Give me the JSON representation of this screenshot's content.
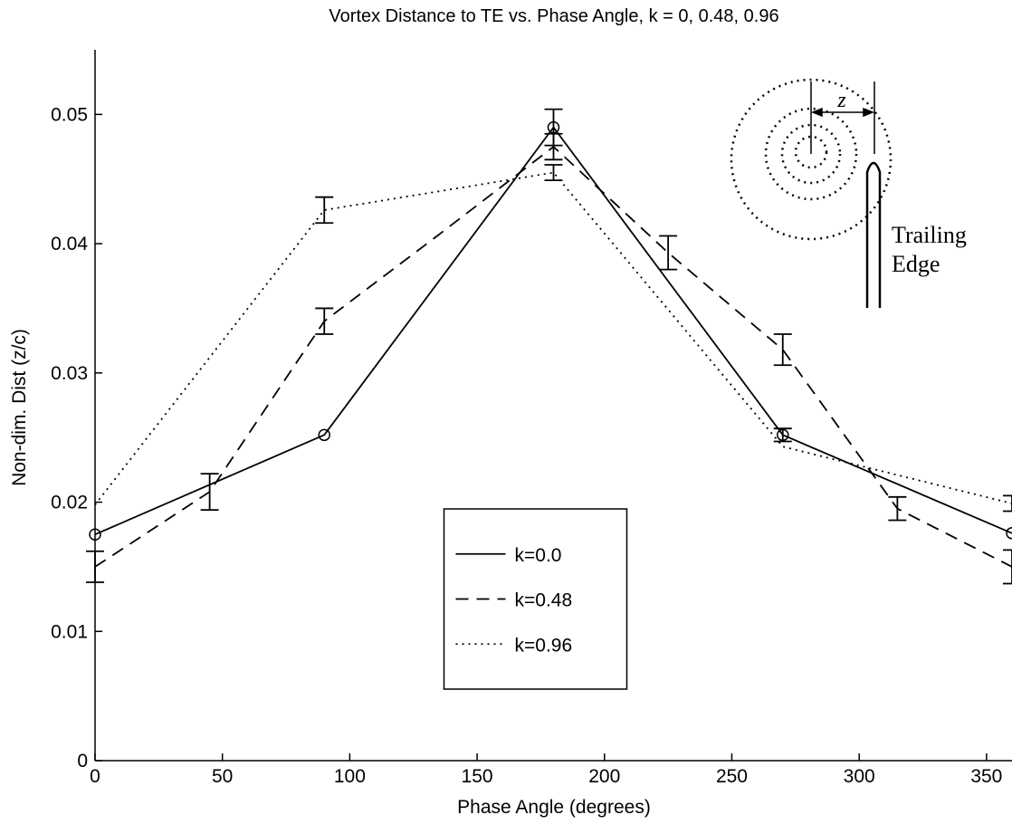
{
  "chart_data": {
    "type": "line",
    "title": "Vortex Distance to TE vs. Phase Angle, k = 0, 0.48, 0.96",
    "x_label": "Phase Angle (degrees)",
    "y_label": "Non-dim. Dist (z/c)",
    "xlim": [
      0,
      360
    ],
    "xticks": [
      0,
      50,
      100,
      150,
      200,
      250,
      300,
      350
    ],
    "ylim": [
      0,
      0.055
    ],
    "yticks": [
      0,
      0.01,
      0.02,
      0.03,
      0.04,
      0.05
    ],
    "legend": "lower center",
    "series": [
      {
        "name": "k=0.0",
        "color": "#000000",
        "style": "solid",
        "marker": "circle",
        "x": [
          0,
          90,
          180,
          270,
          360
        ],
        "values": [
          0.0175,
          0.0252,
          0.049,
          0.0252,
          0.0176
        ],
        "errors": [
          null,
          null,
          0.0014,
          0.0005,
          null
        ]
      },
      {
        "name": "k=0.48",
        "color": "#000000",
        "style": "dashed",
        "marker": "none",
        "x": [
          0,
          45,
          90,
          135,
          180,
          225,
          270,
          315,
          360
        ],
        "values": [
          0.015,
          0.0208,
          0.034,
          0.0407,
          0.0475,
          0.0393,
          0.0318,
          0.0195,
          0.015
        ],
        "errors": [
          0.0012,
          0.0014,
          0.001,
          null,
          0.001,
          0.0013,
          0.0012,
          0.0009,
          0.0013
        ]
      },
      {
        "name": "k=0.96",
        "color": "#000000",
        "style": "dotted",
        "marker": "none",
        "x": [
          0,
          90,
          180,
          270,
          360
        ],
        "values": [
          0.0198,
          0.0426,
          0.0455,
          0.0243,
          0.0199
        ],
        "errors": [
          null,
          0.001,
          0.0006,
          null,
          0.0006
        ]
      }
    ],
    "inset": {
      "z_label": "z",
      "label_lines": [
        "Trailing",
        "Edge"
      ]
    }
  }
}
